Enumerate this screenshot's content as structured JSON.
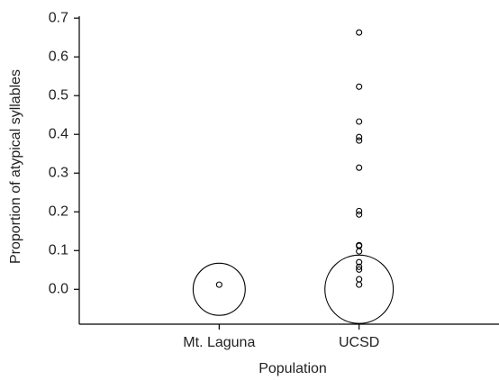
{
  "chart_data": {
    "type": "scatter",
    "x_label": "Population",
    "y_label": "Proportion of atypical syllables",
    "categories": [
      "Mt. Laguna",
      "UCSD"
    ],
    "series": [
      {
        "color": "#000000",
        "values": [
          0.0,
          0.012
        ],
        "sizes": [
          93,
          1
        ]
      },
      {
        "color": "#000000",
        "values": [
          0.0,
          0.663,
          0.523,
          0.433,
          0.393,
          0.384,
          0.314,
          0.202,
          0.193,
          0.114,
          0.112,
          0.098,
          0.07,
          0.058,
          0.051,
          0.026,
          0.012
        ],
        "sizes": [
          160,
          1,
          1,
          1,
          1,
          1,
          1,
          1,
          1,
          1,
          1,
          1,
          1,
          1,
          1,
          1,
          1
        ]
      }
    ],
    "ylim": [
      -0.09,
      0.705
    ],
    "yticks": [
      {
        "value": 0,
        "label": "0.0"
      },
      0.1,
      0.2,
      0.3,
      0.4,
      0.5,
      0.6,
      0.7
    ]
  }
}
